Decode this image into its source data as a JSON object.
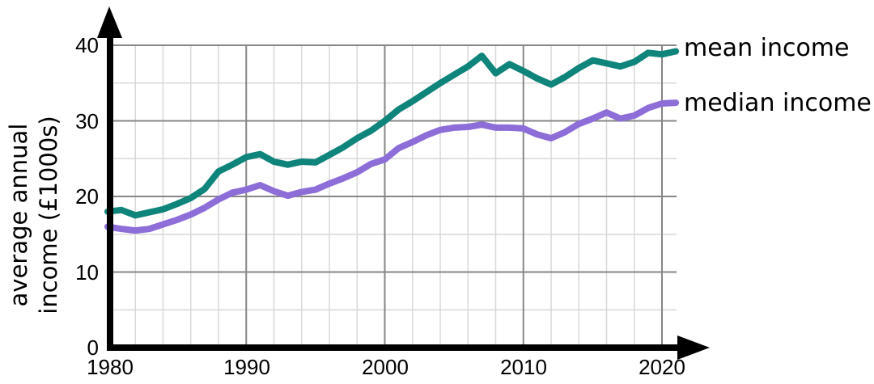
{
  "chart_data": {
    "type": "line",
    "title": "",
    "xlabel": "",
    "ylabel": "average annual income (£1000s)",
    "ylabel_lines": [
      "average annual",
      "income (£1000s)"
    ],
    "x": [
      1980,
      1981,
      1982,
      1983,
      1984,
      1985,
      1986,
      1987,
      1988,
      1989,
      1990,
      1991,
      1992,
      1993,
      1994,
      1995,
      1996,
      1997,
      1998,
      1999,
      2000,
      2001,
      2002,
      2003,
      2004,
      2005,
      2006,
      2007,
      2008,
      2009,
      2010,
      2011,
      2012,
      2013,
      2014,
      2015,
      2016,
      2017,
      2018,
      2019,
      2020,
      2021
    ],
    "series": [
      {
        "name": "mean income",
        "color": "#0e847b",
        "values": [
          18.0,
          18.2,
          17.5,
          17.9,
          18.3,
          19.0,
          19.8,
          21.0,
          23.3,
          24.2,
          25.2,
          25.6,
          24.6,
          24.2,
          24.6,
          24.5,
          25.5,
          26.5,
          27.7,
          28.7,
          30.0,
          31.5,
          32.6,
          33.8,
          35.0,
          36.1,
          37.2,
          38.6,
          36.3,
          37.5,
          36.6,
          35.6,
          34.8,
          35.8,
          37.0,
          38.0,
          37.6,
          37.2,
          37.8,
          39.0,
          38.8,
          39.2
        ]
      },
      {
        "name": "median income",
        "color": "#8d6dd8",
        "values": [
          16.0,
          15.7,
          15.5,
          15.7,
          16.3,
          16.9,
          17.6,
          18.5,
          19.6,
          20.5,
          20.9,
          21.5,
          20.7,
          20.1,
          20.6,
          20.9,
          21.7,
          22.4,
          23.2,
          24.3,
          24.9,
          26.4,
          27.2,
          28.1,
          28.8,
          29.1,
          29.2,
          29.5,
          29.1,
          29.1,
          29.0,
          28.2,
          27.7,
          28.5,
          29.6,
          30.3,
          31.1,
          30.3,
          30.7,
          31.7,
          32.3,
          32.4
        ]
      }
    ],
    "xlim": [
      1980,
      2021
    ],
    "ylim": [
      0,
      40
    ],
    "x_ticks": [
      1980,
      1990,
      2000,
      2010,
      2020
    ],
    "x_tick_labels": [
      "1980",
      "1990",
      "2000",
      "2010",
      "2020"
    ],
    "y_ticks": [
      0,
      10,
      20,
      30,
      40
    ],
    "y_tick_labels": [
      "0",
      "10",
      "20",
      "30",
      "40"
    ],
    "grid": "major+minor",
    "minor_x_step_years": 2,
    "minor_y_step": 5,
    "legend_position": "right-of-line-ends",
    "colors": {
      "grid_minor": "#d8d8d8",
      "grid_major": "#868686",
      "axis": "#000000",
      "text": "#000000",
      "background": "#ffffff"
    }
  }
}
